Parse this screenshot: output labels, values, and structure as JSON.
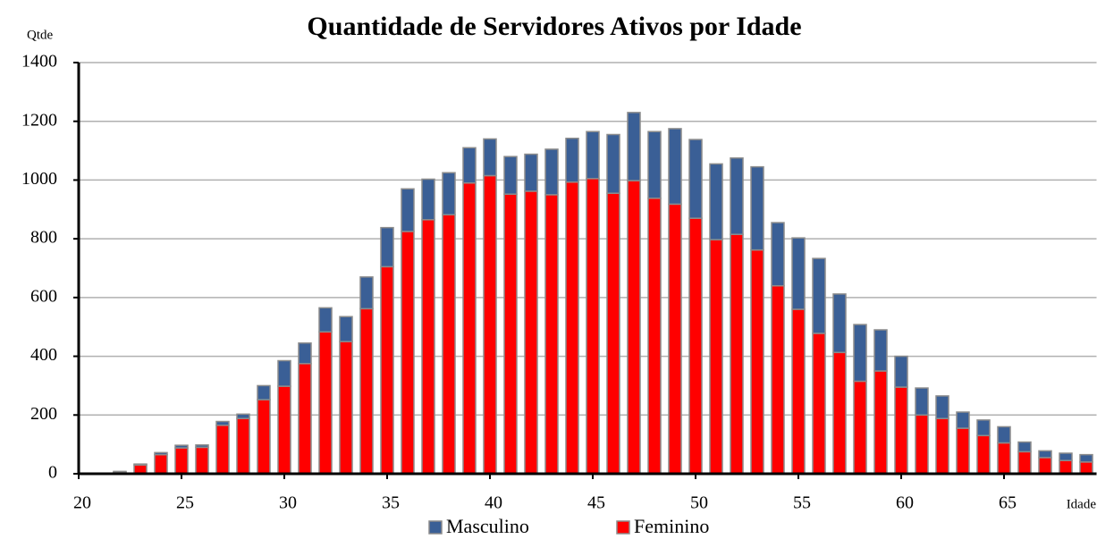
{
  "chart_data": {
    "type": "stacked_bar",
    "title": "Quantidade de Servidores Ativos por Idade",
    "ylabel": "Qtde",
    "xlabel": "Idade",
    "x": [
      22,
      23,
      24,
      25,
      26,
      27,
      28,
      29,
      30,
      31,
      32,
      33,
      34,
      35,
      36,
      37,
      38,
      39,
      40,
      41,
      42,
      43,
      44,
      45,
      46,
      47,
      48,
      49,
      50,
      51,
      52,
      53,
      54,
      55,
      56,
      57,
      58,
      59,
      60,
      61,
      62,
      63,
      64,
      65,
      66,
      67,
      68,
      69
    ],
    "series": [
      {
        "name": "Masculino",
        "color": "#3a5f96",
        "values": [
          3,
          3,
          7,
          9,
          8,
          13,
          15,
          48,
          87,
          70,
          82,
          85,
          108,
          133,
          145,
          138,
          143,
          120,
          125,
          128,
          126,
          155,
          149,
          160,
          200,
          232,
          227,
          257,
          268,
          258,
          260,
          283,
          215,
          243,
          255,
          199,
          193,
          140,
          105,
          92,
          77,
          55,
          53,
          55,
          33,
          23,
          25,
          25
        ]
      },
      {
        "name": "Feminino",
        "color": "#ff0000",
        "values": [
          5,
          30,
          65,
          88,
          90,
          165,
          188,
          252,
          298,
          375,
          483,
          450,
          562,
          705,
          825,
          865,
          882,
          990,
          1015,
          952,
          962,
          950,
          993,
          1005,
          955,
          998,
          938,
          918,
          870,
          797,
          815,
          762,
          640,
          560,
          478,
          413,
          315,
          350,
          295,
          200,
          188,
          155,
          130,
          105,
          75,
          55,
          45,
          40
        ]
      }
    ],
    "xlim": [
      20,
      69.5
    ],
    "xticks": [
      20,
      25,
      30,
      35,
      40,
      45,
      50,
      55,
      60,
      65
    ],
    "ylim": [
      0,
      1400
    ],
    "yticks": [
      0,
      200,
      400,
      600,
      800,
      1000,
      1200,
      1400
    ],
    "grid": true,
    "legend": "bottom"
  }
}
